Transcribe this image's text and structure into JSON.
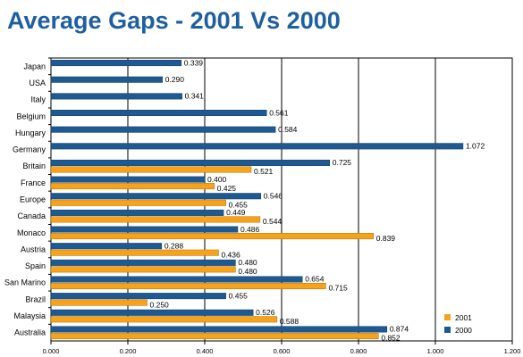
{
  "title": "Average Gaps - 2001 Vs 2000",
  "chart_data": {
    "type": "bar",
    "orientation": "horizontal",
    "title": "Average Gaps - 2001 Vs 2000",
    "xlabel": "",
    "ylabel": "",
    "xlim": [
      0,
      1.2
    ],
    "xticks": [
      "0.000",
      "0.200",
      "0.400",
      "0.600",
      "0.800",
      "1.000",
      "1.200"
    ],
    "grid": "vertical",
    "legend_position": "bottom-right",
    "categories": [
      "Japan",
      "USA",
      "Italy",
      "Belgium",
      "Hungary",
      "Germany",
      "Britain",
      "France",
      "Europe",
      "Canada",
      "Monaco",
      "Austria",
      "Spain",
      "San Marino",
      "Brazil",
      "Malaysia",
      "Australia"
    ],
    "series": [
      {
        "name": "2001",
        "color": "#f7a21b",
        "values": [
          null,
          null,
          null,
          null,
          null,
          null,
          0.521,
          0.425,
          0.455,
          0.544,
          0.839,
          0.436,
          0.48,
          0.715,
          0.25,
          0.588,
          0.852
        ],
        "labels": [
          "",
          "",
          "",
          "",
          "",
          "",
          "0.521",
          "0.425",
          "0.455",
          "0.544",
          "0.839",
          "0.436",
          "0.480",
          "0.715",
          "0.250",
          "0.588",
          "0.852"
        ]
      },
      {
        "name": "2000",
        "color": "#1e5a91",
        "values": [
          0.339,
          0.29,
          0.341,
          0.561,
          0.584,
          1.072,
          0.725,
          0.4,
          0.546,
          0.449,
          0.486,
          0.288,
          0.48,
          0.654,
          0.455,
          0.526,
          0.874
        ],
        "labels": [
          "0.339",
          "0.290",
          "0.341",
          "0.561",
          "0.584",
          "1.072",
          "0.725",
          "0.400",
          "0.546",
          "0.449",
          "0.486",
          "0.288",
          "0.480",
          "0.654",
          "0.455",
          "0.526",
          "0.874"
        ]
      }
    ]
  }
}
